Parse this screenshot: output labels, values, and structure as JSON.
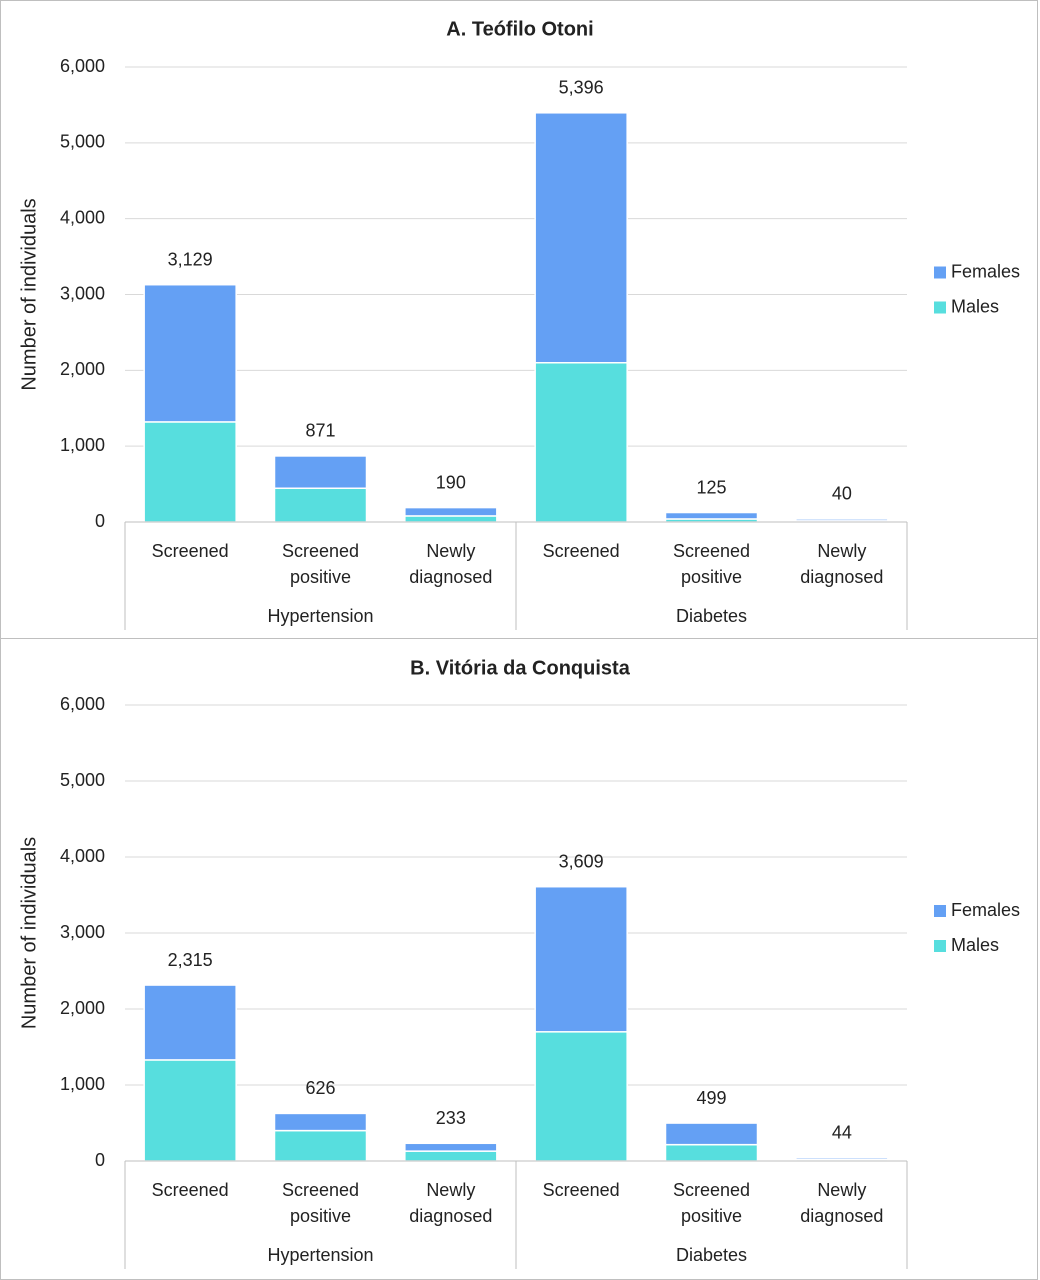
{
  "chart_data": [
    {
      "type": "bar",
      "stacked": true,
      "title": "A. Teófilo Otoni",
      "y_label": "Number of individuals",
      "groups": [
        "Hypertension",
        "Diabetes"
      ],
      "categories": [
        "Screened",
        "Screened positive",
        "Newly diagnosed",
        "Screened",
        "Screened positive",
        "Newly diagnosed"
      ],
      "series": [
        {
          "name": "Males",
          "color": "#57dede",
          "values": [
            1320,
            445,
            80,
            2100,
            40,
            15
          ]
        },
        {
          "name": "Females",
          "color": "#64a0f4",
          "values": [
            1809,
            426,
            110,
            3296,
            85,
            25
          ]
        }
      ],
      "totals": [
        3129,
        871,
        190,
        5396,
        125,
        40
      ],
      "value_labels": [
        "3,129",
        "871",
        "190",
        "5,396",
        "125",
        "40"
      ],
      "ylim": [
        0,
        6000
      ],
      "yticks": [
        0,
        {
          "value": 1000,
          "label": "1,000"
        },
        {
          "value": 2000,
          "label": "2,000"
        },
        {
          "value": 3000,
          "label": "3,000"
        },
        {
          "value": 4000,
          "label": "4,000"
        },
        {
          "value": 5000,
          "label": "5,000"
        },
        {
          "value": 6000,
          "label": "6,000"
        }
      ],
      "grid": true,
      "legend": "right"
    },
    {
      "type": "bar",
      "stacked": true,
      "title": "B. Vitória da Conquista",
      "y_label": "Number of individuals",
      "groups": [
        "Hypertension",
        "Diabetes"
      ],
      "categories": [
        "Screened",
        "Screened positive",
        "Newly diagnosed",
        "Screened",
        "Screened positive",
        "Newly diagnosed"
      ],
      "series": [
        {
          "name": "Males",
          "color": "#57dede",
          "values": [
            1330,
            400,
            130,
            1700,
            215,
            20
          ]
        },
        {
          "name": "Females",
          "color": "#64a0f4",
          "values": [
            985,
            226,
            103,
            1909,
            284,
            24
          ]
        }
      ],
      "totals": [
        2315,
        626,
        233,
        3609,
        499,
        44
      ],
      "value_labels": [
        "2,315",
        "626",
        "233",
        "3,609",
        "499",
        "44"
      ],
      "ylim": [
        0,
        6000
      ],
      "yticks": [
        0,
        {
          "value": 1000,
          "label": "1,000"
        },
        {
          "value": 2000,
          "label": "2,000"
        },
        {
          "value": 3000,
          "label": "3,000"
        },
        {
          "value": 4000,
          "label": "4,000"
        },
        {
          "value": 5000,
          "label": "5,000"
        },
        {
          "value": 6000,
          "label": "6,000"
        }
      ],
      "grid": true,
      "legend": "right"
    }
  ]
}
